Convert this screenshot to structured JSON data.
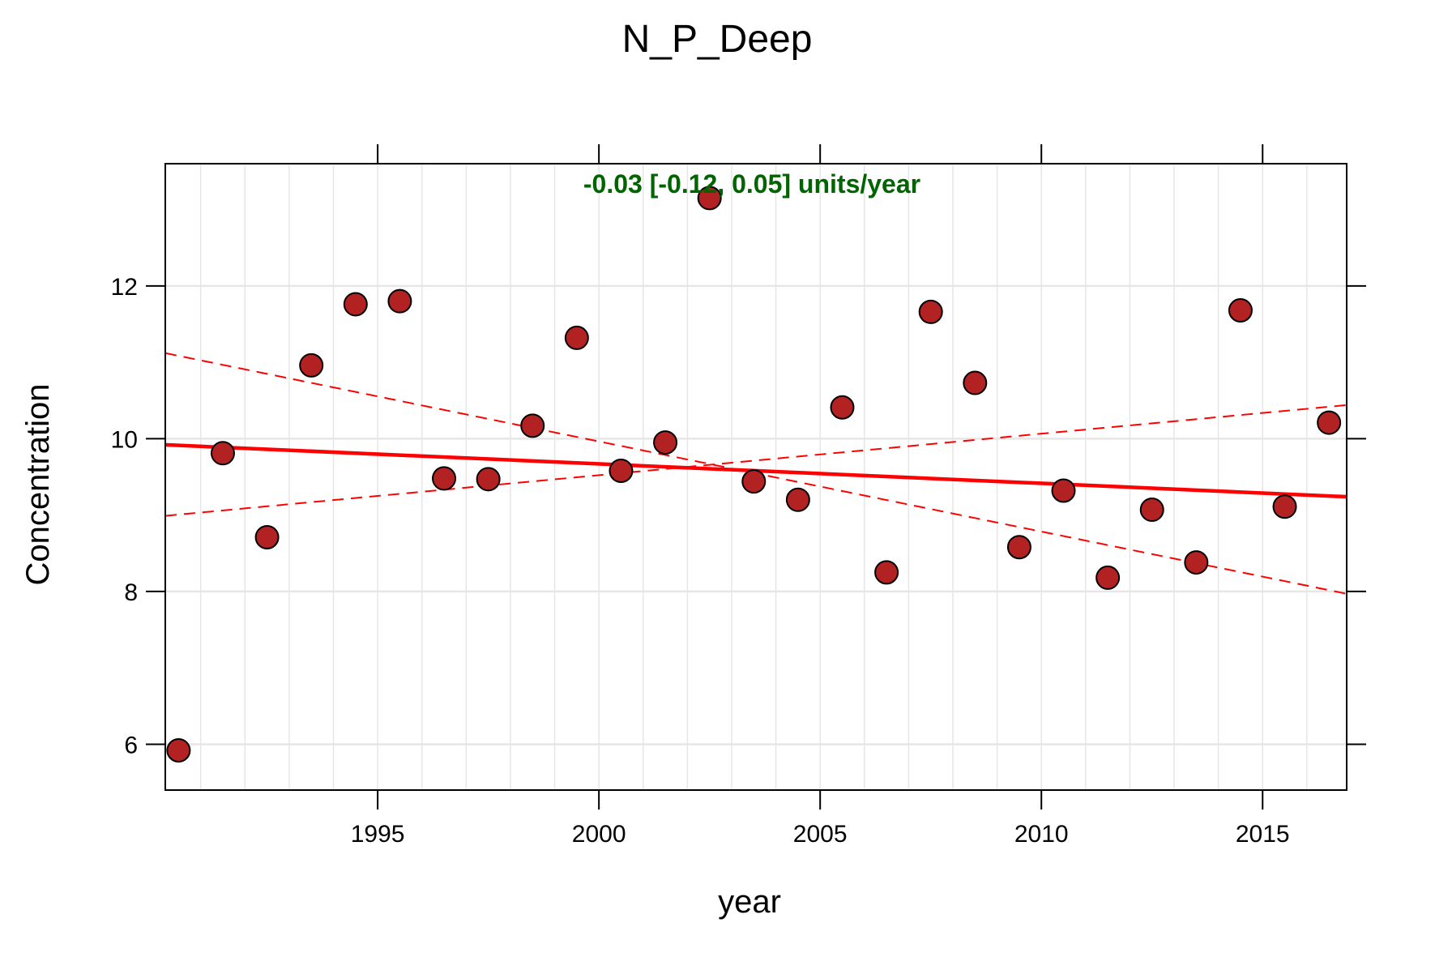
{
  "chart_data": {
    "type": "scatter",
    "title": "N_P_Deep",
    "xlabel": "year",
    "ylabel": "Concentration",
    "xlim": [
      1990.2,
      2016.9
    ],
    "ylim": [
      5.4,
      13.6
    ],
    "xticks": [
      1995,
      2000,
      2005,
      2010,
      2015
    ],
    "yticks": [
      6,
      8,
      10,
      12
    ],
    "grid": true,
    "annotation": "-0.03 [-0.12, 0.05] units/year",
    "colors": {
      "points": "#b22222",
      "trend": "#ff0000",
      "annotation": "#006400",
      "grid": "#e6e6e6"
    },
    "points": [
      {
        "x": 1990.5,
        "y": 5.92
      },
      {
        "x": 1991.5,
        "y": 9.81
      },
      {
        "x": 1992.5,
        "y": 8.71
      },
      {
        "x": 1993.5,
        "y": 10.96
      },
      {
        "x": 1994.5,
        "y": 11.76
      },
      {
        "x": 1995.5,
        "y": 11.8
      },
      {
        "x": 1996.5,
        "y": 9.48
      },
      {
        "x": 1997.5,
        "y": 9.47
      },
      {
        "x": 1998.5,
        "y": 10.17
      },
      {
        "x": 1999.5,
        "y": 11.32
      },
      {
        "x": 2000.5,
        "y": 9.58
      },
      {
        "x": 2001.5,
        "y": 9.95
      },
      {
        "x": 2002.5,
        "y": 13.15
      },
      {
        "x": 2003.5,
        "y": 9.44
      },
      {
        "x": 2004.5,
        "y": 9.2
      },
      {
        "x": 2005.5,
        "y": 10.41
      },
      {
        "x": 2006.5,
        "y": 8.25
      },
      {
        "x": 2007.5,
        "y": 11.66
      },
      {
        "x": 2008.5,
        "y": 10.73
      },
      {
        "x": 2009.5,
        "y": 8.58
      },
      {
        "x": 2010.5,
        "y": 9.32
      },
      {
        "x": 2011.5,
        "y": 8.18
      },
      {
        "x": 2012.5,
        "y": 9.07
      },
      {
        "x": 2013.5,
        "y": 8.38
      },
      {
        "x": 2014.5,
        "y": 11.68
      },
      {
        "x": 2015.5,
        "y": 9.11
      },
      {
        "x": 2016.5,
        "y": 10.21
      }
    ],
    "trend": {
      "x": [
        1990.2,
        2016.9
      ],
      "y": [
        9.92,
        9.24
      ]
    },
    "lower_bound": {
      "x": [
        1990.2,
        2016.9
      ],
      "y": [
        11.12,
        7.97
      ]
    },
    "upper_bound": {
      "x": [
        1990.2,
        2016.9
      ],
      "y": [
        8.99,
        10.44
      ]
    }
  }
}
